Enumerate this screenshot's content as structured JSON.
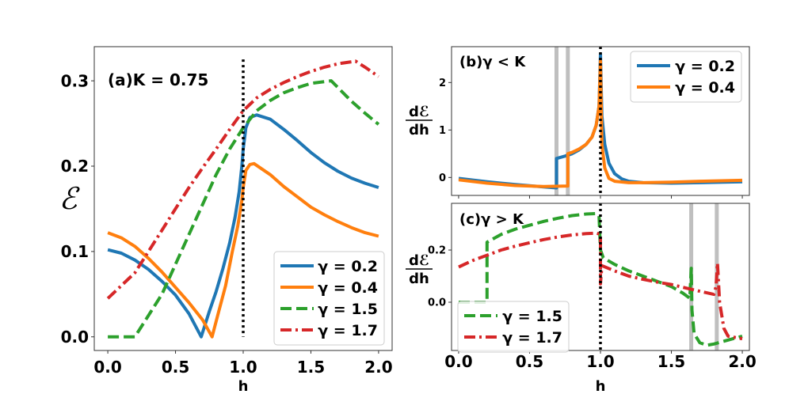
{
  "chart_data": [
    {
      "panel": "a",
      "type": "line",
      "annotation": "(a)K = 0.75",
      "xlabel": "h",
      "ylabel": "ℰ",
      "xlim": [
        -0.1,
        2.1
      ],
      "ylim": [
        -0.016,
        0.34
      ],
      "xticks": [
        "0.0",
        "0.5",
        "1.0",
        "1.5",
        "2.0"
      ],
      "yticks": [
        "0.0",
        "0.1",
        "0.2",
        "0.3"
      ],
      "legend": "lower right",
      "vline": {
        "x": 1.0,
        "y": [
          0,
          0.325
        ],
        "style": "dotted",
        "color": "#000000"
      },
      "bands": [],
      "series": [
        {
          "name": "γ = 0.2",
          "color": "#1f77b4",
          "style": "solid",
          "x": [
            0,
            0.1,
            0.2,
            0.3,
            0.4,
            0.5,
            0.6,
            0.69,
            0.75,
            0.8,
            0.85,
            0.9,
            0.94,
            0.97,
            0.99,
            1.0,
            1.02,
            1.05,
            1.1,
            1.2,
            1.3,
            1.4,
            1.5,
            1.6,
            1.7,
            1.8,
            1.9,
            2.0
          ],
          "y": [
            0.102,
            0.098,
            0.09,
            0.079,
            0.065,
            0.049,
            0.027,
            0.0,
            0.03,
            0.053,
            0.08,
            0.11,
            0.14,
            0.17,
            0.2,
            0.22,
            0.245,
            0.257,
            0.26,
            0.255,
            0.243,
            0.23,
            0.216,
            0.204,
            0.194,
            0.186,
            0.18,
            0.175
          ]
        },
        {
          "name": "γ = 0.4",
          "color": "#ff7f0e",
          "style": "solid",
          "x": [
            0,
            0.1,
            0.2,
            0.3,
            0.4,
            0.5,
            0.6,
            0.7,
            0.77,
            0.82,
            0.87,
            0.92,
            0.96,
            0.99,
            1.0,
            1.02,
            1.05,
            1.08,
            1.2,
            1.3,
            1.4,
            1.5,
            1.6,
            1.7,
            1.8,
            1.9,
            2.0
          ],
          "y": [
            0.122,
            0.116,
            0.106,
            0.092,
            0.076,
            0.058,
            0.04,
            0.02,
            0.0,
            0.03,
            0.06,
            0.1,
            0.13,
            0.16,
            0.175,
            0.195,
            0.202,
            0.203,
            0.19,
            0.176,
            0.164,
            0.152,
            0.143,
            0.135,
            0.128,
            0.122,
            0.118
          ]
        },
        {
          "name": "γ = 1.5",
          "color": "#2ca02c",
          "style": "dashed",
          "x": [
            0,
            0.2,
            0.3,
            0.4,
            0.5,
            0.6,
            0.7,
            0.8,
            0.9,
            1.0,
            1.1,
            1.2,
            1.3,
            1.4,
            1.5,
            1.65,
            1.8,
            1.9,
            2.0
          ],
          "y": [
            0.0,
            0.0,
            0.025,
            0.05,
            0.085,
            0.12,
            0.155,
            0.19,
            0.22,
            0.245,
            0.265,
            0.277,
            0.286,
            0.292,
            0.297,
            0.3,
            0.276,
            0.262,
            0.249
          ]
        },
        {
          "name": "γ = 1.7",
          "color": "#d62728",
          "style": "dashdot",
          "x": [
            0,
            0.1,
            0.2,
            0.3,
            0.4,
            0.5,
            0.6,
            0.7,
            0.8,
            0.9,
            1.0,
            1.1,
            1.2,
            1.3,
            1.4,
            1.5,
            1.6,
            1.7,
            1.83,
            1.9,
            2.0
          ],
          "y": [
            0.045,
            0.06,
            0.075,
            0.1,
            0.125,
            0.15,
            0.175,
            0.198,
            0.22,
            0.243,
            0.265,
            0.28,
            0.29,
            0.298,
            0.305,
            0.311,
            0.316,
            0.32,
            0.323,
            0.316,
            0.305
          ]
        }
      ]
    },
    {
      "panel": "b",
      "type": "line",
      "annotation": "(b)γ < K",
      "xlabel": "",
      "ylabel": "dℰ/dh",
      "xlim": [
        -0.05,
        2.05
      ],
      "ylim": [
        -0.378,
        2.755
      ],
      "xticks": [
        "",
        "",
        "",
        "",
        ""
      ],
      "yticks": [
        "0",
        "1",
        "2"
      ],
      "legend": "upper right",
      "vline": {
        "x": 1.0,
        "y": [
          -0.378,
          2.755
        ],
        "style": "dotted",
        "color": "#000000"
      },
      "bands": [
        0.69,
        0.77
      ],
      "series": [
        {
          "name": "γ = 0.2",
          "color": "#1f77b4",
          "style": "solid",
          "x": [
            0,
            0.2,
            0.4,
            0.6,
            0.69,
            0.69,
            0.75,
            0.8,
            0.85,
            0.9,
            0.94,
            0.97,
            0.99,
            1.0,
            1.01,
            1.03,
            1.06,
            1.1,
            1.15,
            1.2,
            1.3,
            1.5,
            1.7,
            2.0
          ],
          "y": [
            -0.02,
            -0.09,
            -0.15,
            -0.2,
            -0.22,
            0.4,
            0.45,
            0.5,
            0.58,
            0.7,
            0.85,
            1.1,
            1.5,
            2.6,
            1.3,
            0.7,
            0.3,
            0.08,
            -0.03,
            -0.08,
            -0.11,
            -0.12,
            -0.11,
            -0.09
          ]
        },
        {
          "name": "γ = 0.4",
          "color": "#ff7f0e",
          "style": "solid",
          "x": [
            0,
            0.2,
            0.4,
            0.6,
            0.77,
            0.77,
            0.8,
            0.85,
            0.9,
            0.94,
            0.97,
            0.99,
            1.0,
            1.01,
            1.03,
            1.06,
            1.1,
            1.2,
            1.3,
            1.5,
            1.7,
            2.0
          ],
          "y": [
            -0.05,
            -0.12,
            -0.17,
            -0.19,
            -0.18,
            0.5,
            0.53,
            0.6,
            0.7,
            0.85,
            1.1,
            1.5,
            2.45,
            0.7,
            0.2,
            -0.02,
            -0.08,
            -0.11,
            -0.11,
            -0.1,
            -0.08,
            -0.06
          ]
        }
      ]
    },
    {
      "panel": "c",
      "type": "line",
      "annotation": "(c)γ > K",
      "xlabel": "h",
      "ylabel": "dℰ/dh",
      "xlim": [
        -0.05,
        2.05
      ],
      "ylim": [
        -0.185,
        0.379
      ],
      "xticks": [
        "0.0",
        "0.5",
        "1.0",
        "1.5",
        "2.0"
      ],
      "yticks": [
        "0.0",
        "0.2"
      ],
      "legend": "lower left",
      "vline": {
        "x": 1.0,
        "y": [
          -0.185,
          0.379
        ],
        "style": "dotted",
        "color": "#000000"
      },
      "bands": [
        1.64,
        1.82
      ],
      "series": [
        {
          "name": "γ = 1.5",
          "color": "#2ca02c",
          "style": "dashed",
          "x": [
            0,
            0.2,
            0.2,
            0.3,
            0.4,
            0.5,
            0.6,
            0.7,
            0.8,
            0.9,
            0.97,
            0.99,
            1.0,
            1.02,
            1.1,
            1.2,
            1.3,
            1.4,
            1.5,
            1.58,
            1.63,
            1.64,
            1.645,
            1.66,
            1.7,
            1.75,
            1.8,
            1.9,
            2.0
          ],
          "y": [
            0,
            0,
            0.23,
            0.26,
            0.28,
            0.295,
            0.31,
            0.322,
            0.332,
            0.338,
            0.34,
            0.33,
            0.2,
            0.17,
            0.145,
            0.12,
            0.1,
            0.08,
            0.06,
            0.035,
            0.015,
            0.13,
            -0.03,
            -0.12,
            -0.155,
            -0.165,
            -0.16,
            -0.145,
            -0.13
          ]
        },
        {
          "name": "γ = 1.7",
          "color": "#d62728",
          "style": "dashdot",
          "x": [
            0,
            0.1,
            0.2,
            0.3,
            0.4,
            0.5,
            0.6,
            0.7,
            0.8,
            0.9,
            0.97,
            1.0,
            1.0,
            1.01,
            1.1,
            1.2,
            1.3,
            1.4,
            1.5,
            1.6,
            1.7,
            1.8,
            1.815,
            1.825,
            1.84,
            1.87,
            1.9,
            2.0
          ],
          "y": [
            0.135,
            0.16,
            0.18,
            0.2,
            0.215,
            0.228,
            0.24,
            0.25,
            0.258,
            0.263,
            0.265,
            0.26,
            0.07,
            0.14,
            0.12,
            0.1,
            0.088,
            0.077,
            0.068,
            0.055,
            0.042,
            0.03,
            0.06,
            0.15,
            0.0,
            -0.1,
            -0.13,
            -0.14
          ]
        }
      ]
    }
  ]
}
